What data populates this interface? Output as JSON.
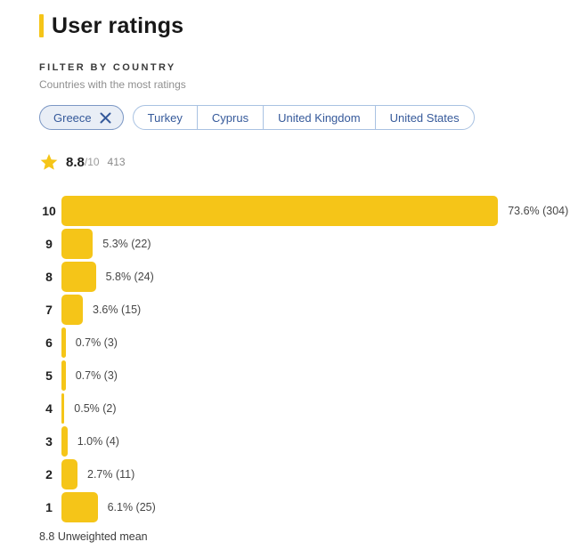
{
  "page": {
    "title": "User ratings"
  },
  "filter": {
    "label": "FILTER BY COUNTRY",
    "sublabel": "Countries with the most ratings",
    "selected_country": "Greece",
    "options": [
      "Turkey",
      "Cyprus",
      "United Kingdom",
      "United States"
    ]
  },
  "summary": {
    "score": "8.8",
    "out_of": "/10",
    "votes": "413"
  },
  "chart_data": {
    "type": "bar",
    "orientation": "horizontal",
    "title": "User ratings histogram",
    "categories": [
      "10",
      "9",
      "8",
      "7",
      "6",
      "5",
      "4",
      "3",
      "2",
      "1"
    ],
    "values_percent": [
      73.6,
      5.3,
      5.8,
      3.6,
      0.7,
      0.7,
      0.5,
      1.0,
      2.7,
      6.1
    ],
    "counts": [
      304,
      22,
      24,
      15,
      3,
      3,
      2,
      4,
      11,
      25
    ],
    "labels": [
      "73.6% (304)",
      "5.3% (22)",
      "5.8% (24)",
      "3.6% (15)",
      "0.7% (3)",
      "0.7% (3)",
      "0.5% (2)",
      "1.0% (4)",
      "2.7% (11)",
      "6.1% (25)"
    ],
    "xlim": [
      0,
      100
    ],
    "grid": false,
    "legend": false,
    "bar_color": "#F5C518"
  },
  "footer": {
    "mean_label": "8.8 Unweighted mean"
  },
  "colors": {
    "accent_yellow": "#F5C518",
    "chip_text_blue": "#35599a",
    "chip_border_blue": "#a9c2e2",
    "chip_selected_bg": "#e9eef6",
    "chip_selected_border": "#7b97c4",
    "label_gray": "#474747"
  }
}
